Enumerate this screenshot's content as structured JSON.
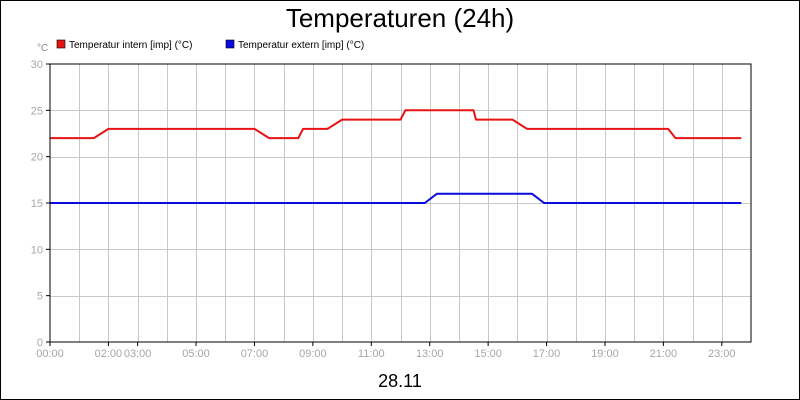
{
  "chart_data": {
    "type": "line",
    "title": "Temperaturen (24h)",
    "footer_label": "28.11",
    "y_unit": "°C",
    "ylim": [
      0,
      30
    ],
    "y_ticks": [
      0,
      5,
      10,
      15,
      20,
      25,
      30
    ],
    "xlim_minutes": [
      0,
      1440
    ],
    "x_ticks": [
      "00:00",
      "02:00",
      "03:00",
      "05:00",
      "07:00",
      "09:00",
      "11:00",
      "13:00",
      "15:00",
      "17:00",
      "19:00",
      "21:00",
      "23:00"
    ],
    "grid": true,
    "legend_position": "top-left",
    "series": [
      {
        "name": "Temperatur intern [imp] (°C)",
        "color": "#e81414",
        "points": [
          [
            "00:00",
            22
          ],
          [
            "01:30",
            22
          ],
          [
            "02:00",
            23
          ],
          [
            "07:00",
            23
          ],
          [
            "07:30",
            22
          ],
          [
            "08:30",
            22
          ],
          [
            "08:40",
            23
          ],
          [
            "09:30",
            23
          ],
          [
            "10:00",
            24
          ],
          [
            "12:00",
            24
          ],
          [
            "12:10",
            25
          ],
          [
            "14:30",
            25
          ],
          [
            "14:35",
            24
          ],
          [
            "15:50",
            24
          ],
          [
            "16:20",
            23
          ],
          [
            "21:10",
            23
          ],
          [
            "21:25",
            22
          ],
          [
            "23:40",
            22
          ]
        ]
      },
      {
        "name": "Temperatur extern [imp] (°C)",
        "color": "#0a0ae0",
        "points": [
          [
            "00:00",
            15
          ],
          [
            "12:50",
            15
          ],
          [
            "13:15",
            16
          ],
          [
            "16:30",
            16
          ],
          [
            "16:55",
            15
          ],
          [
            "23:40",
            15
          ]
        ]
      }
    ]
  }
}
